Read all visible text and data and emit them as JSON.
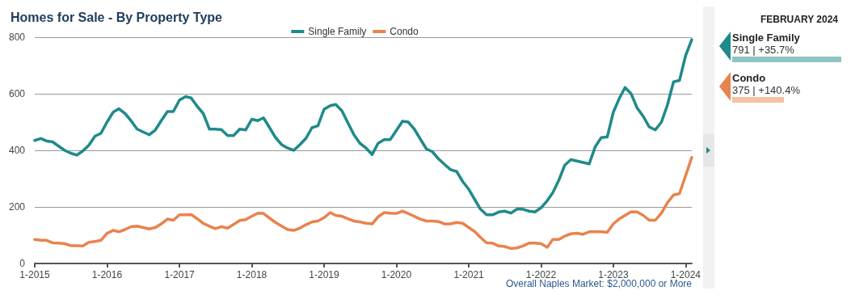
{
  "chart_data": {
    "type": "line",
    "title": "Homes for Sale - By Property Type",
    "x": [
      "2015-01",
      "2015-02",
      "2015-03",
      "2015-04",
      "2015-05",
      "2015-06",
      "2015-07",
      "2015-08",
      "2015-09",
      "2015-10",
      "2015-11",
      "2015-12",
      "2016-01",
      "2016-02",
      "2016-03",
      "2016-04",
      "2016-05",
      "2016-06",
      "2016-07",
      "2016-08",
      "2016-09",
      "2016-10",
      "2016-11",
      "2016-12",
      "2017-01",
      "2017-02",
      "2017-03",
      "2017-04",
      "2017-05",
      "2017-06",
      "2017-07",
      "2017-08",
      "2017-09",
      "2017-10",
      "2017-11",
      "2017-12",
      "2018-01",
      "2018-02",
      "2018-03",
      "2018-04",
      "2018-05",
      "2018-06",
      "2018-07",
      "2018-08",
      "2018-09",
      "2018-10",
      "2018-11",
      "2018-12",
      "2019-01",
      "2019-02",
      "2019-03",
      "2019-04",
      "2019-05",
      "2019-06",
      "2019-07",
      "2019-08",
      "2019-09",
      "2019-10",
      "2019-11",
      "2019-12",
      "2020-01",
      "2020-02",
      "2020-03",
      "2020-04",
      "2020-05",
      "2020-06",
      "2020-07",
      "2020-08",
      "2020-09",
      "2020-10",
      "2020-11",
      "2020-12",
      "2021-01",
      "2021-02",
      "2021-03",
      "2021-04",
      "2021-05",
      "2021-06",
      "2021-07",
      "2021-08",
      "2021-09",
      "2021-10",
      "2021-11",
      "2021-12",
      "2022-01",
      "2022-02",
      "2022-03",
      "2022-04",
      "2022-05",
      "2022-06",
      "2022-07",
      "2022-08",
      "2022-09",
      "2022-10",
      "2022-11",
      "2022-12",
      "2023-01",
      "2023-02",
      "2023-03",
      "2023-04",
      "2023-05",
      "2023-06",
      "2023-07",
      "2023-08",
      "2023-09",
      "2023-10",
      "2023-11",
      "2023-12",
      "2024-01",
      "2024-02"
    ],
    "series": [
      {
        "name": "Single Family",
        "color": "#1f8a8a",
        "values": [
          435,
          442,
          433,
          430,
          415,
          400,
          390,
          383,
          398,
          418,
          450,
          460,
          500,
          535,
          547,
          530,
          505,
          475,
          465,
          455,
          472,
          505,
          537,
          537,
          578,
          590,
          585,
          555,
          530,
          475,
          475,
          473,
          452,
          452,
          475,
          472,
          510,
          505,
          515,
          480,
          445,
          420,
          408,
          400,
          420,
          442,
          480,
          487,
          545,
          558,
          562,
          540,
          498,
          455,
          425,
          408,
          385,
          425,
          438,
          438,
          470,
          503,
          500,
          475,
          440,
          405,
          395,
          370,
          350,
          332,
          325,
          290,
          262,
          225,
          192,
          172,
          172,
          182,
          185,
          178,
          192,
          192,
          185,
          182,
          197,
          222,
          250,
          295,
          348,
          367,
          362,
          357,
          352,
          412,
          445,
          447,
          535,
          585,
          622,
          600,
          550,
          520,
          483,
          472,
          500,
          560,
          642,
          647,
          735,
          791
        ]
      },
      {
        "name": "Condo",
        "color": "#e8834e",
        "values": [
          85,
          82,
          82,
          73,
          72,
          70,
          63,
          63,
          62,
          75,
          78,
          82,
          107,
          117,
          112,
          120,
          130,
          132,
          127,
          122,
          127,
          140,
          157,
          153,
          172,
          172,
          173,
          158,
          142,
          132,
          123,
          130,
          125,
          138,
          152,
          155,
          167,
          178,
          177,
          160,
          145,
          132,
          120,
          117,
          125,
          137,
          147,
          150,
          162,
          180,
          170,
          167,
          158,
          150,
          147,
          142,
          140,
          165,
          180,
          178,
          177,
          185,
          177,
          167,
          157,
          150,
          150,
          148,
          140,
          140,
          145,
          142,
          127,
          112,
          92,
          73,
          72,
          62,
          60,
          53,
          55,
          62,
          72,
          72,
          70,
          57,
          85,
          85,
          97,
          105,
          107,
          103,
          112,
          112,
          112,
          110,
          140,
          158,
          170,
          183,
          182,
          170,
          153,
          153,
          178,
          215,
          242,
          247,
          310,
          375
        ]
      }
    ],
    "xlim": [
      "2015-01",
      "2024-02"
    ],
    "xticks": [
      {
        "value": "2015-01",
        "label": "1-2015"
      },
      {
        "value": "2016-01",
        "label": "1-2016"
      },
      {
        "value": "2017-01",
        "label": "1-2017"
      },
      {
        "value": "2018-01",
        "label": "1-2018"
      },
      {
        "value": "2019-01",
        "label": "1-2019"
      },
      {
        "value": "2020-01",
        "label": "1-2020"
      },
      {
        "value": "2021-01",
        "label": "1-2021"
      },
      {
        "value": "2022-01",
        "label": "1-2022"
      },
      {
        "value": "2023-01",
        "label": "1-2023"
      },
      {
        "value": "2024-01",
        "label": "1-2024"
      }
    ],
    "ylim": [
      0,
      800
    ],
    "yticks": [
      0,
      200,
      400,
      600,
      800
    ],
    "grid": "y",
    "legend": "top",
    "marker": "none",
    "line_style": "solid",
    "annotations": [
      "Overall Naples Market: $2,000,000 or More",
      "FEBRUARY 2024",
      "791 | +35.7%",
      "375 | +140.4%"
    ]
  }
}
